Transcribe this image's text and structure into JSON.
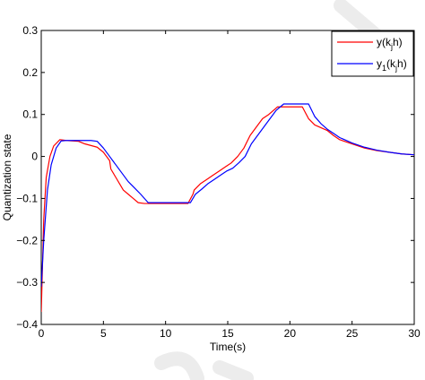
{
  "chart_data": {
    "type": "line",
    "xlabel": "Time(s)",
    "ylabel": "Quantization state",
    "xlim": [
      0,
      30
    ],
    "ylim": [
      -0.4,
      0.3
    ],
    "xticks": [
      0,
      5,
      10,
      15,
      20,
      25,
      30
    ],
    "xtick_labels": [
      "0",
      "5",
      "10",
      "15",
      "20",
      "25",
      "30"
    ],
    "yticks": [
      -0.4,
      -0.3,
      -0.2,
      -0.1,
      0,
      0.1,
      0.2,
      0.3
    ],
    "ytick_labels": [
      "−0.4",
      "−0.3",
      "−0.2",
      "−0.1",
      "0",
      "0.1",
      "0.2",
      "0.3"
    ],
    "grid": false,
    "legend_position": "top-right",
    "series": [
      {
        "name": "y(k_j h)",
        "color": "#ff0000",
        "x": [
          0,
          0.2,
          0.4,
          0.7,
          1.0,
          1.5,
          2.0,
          3.0,
          3.5,
          4.5,
          5.0,
          5.5,
          5.6,
          6.0,
          6.3,
          6.6,
          7.0,
          7.4,
          7.8,
          8.3,
          9.0,
          10.0,
          11.0,
          11.8,
          12.2,
          12.3,
          12.8,
          13.3,
          13.8,
          14.3,
          14.8,
          15.3,
          15.8,
          16.3,
          16.8,
          17.3,
          17.8,
          18.3,
          19.0,
          20.0,
          21.0,
          21.5,
          22.0,
          23.0,
          23.5,
          24.0,
          25.0,
          26.0,
          27.0,
          28.0,
          29.0,
          30.0
        ],
        "y": [
          -0.37,
          -0.15,
          -0.05,
          0.0,
          0.025,
          0.04,
          0.038,
          0.036,
          0.03,
          0.022,
          0.01,
          -0.01,
          -0.03,
          -0.05,
          -0.065,
          -0.08,
          -0.09,
          -0.1,
          -0.11,
          -0.112,
          -0.112,
          -0.112,
          -0.112,
          -0.112,
          -0.09,
          -0.08,
          -0.065,
          -0.055,
          -0.045,
          -0.035,
          -0.025,
          -0.015,
          0.0,
          0.02,
          0.05,
          0.07,
          0.09,
          0.1,
          0.118,
          0.118,
          0.118,
          0.09,
          0.075,
          0.062,
          0.05,
          0.04,
          0.03,
          0.02,
          0.014,
          0.01,
          0.006,
          0.004
        ]
      },
      {
        "name": "y_1(k_j h)",
        "color": "#0000ff",
        "x": [
          0,
          0.2,
          0.5,
          0.8,
          1.2,
          1.6,
          2.0,
          3.0,
          4.0,
          4.5,
          5.0,
          5.5,
          6.0,
          6.5,
          7.0,
          7.5,
          8.0,
          8.6,
          9.5,
          10.5,
          11.5,
          12.0,
          12.4,
          12.9,
          13.4,
          13.9,
          14.4,
          14.9,
          15.4,
          15.9,
          16.4,
          16.9,
          17.4,
          17.9,
          18.4,
          18.9,
          19.5,
          20.5,
          21.5,
          22.0,
          22.5,
          23.0,
          23.5,
          24.0,
          25.0,
          26.0,
          27.0,
          28.0,
          29.0,
          30.0
        ],
        "y": [
          -0.31,
          -0.2,
          -0.08,
          -0.02,
          0.02,
          0.037,
          0.038,
          0.038,
          0.038,
          0.036,
          0.02,
          0.0,
          -0.02,
          -0.04,
          -0.06,
          -0.075,
          -0.09,
          -0.11,
          -0.11,
          -0.11,
          -0.11,
          -0.11,
          -0.09,
          -0.078,
          -0.065,
          -0.055,
          -0.045,
          -0.035,
          -0.028,
          -0.015,
          0.0,
          0.03,
          0.05,
          0.07,
          0.09,
          0.11,
          0.125,
          0.125,
          0.125,
          0.095,
          0.078,
          0.065,
          0.055,
          0.045,
          0.032,
          0.022,
          0.015,
          0.01,
          0.006,
          0.004
        ]
      }
    ]
  },
  "legend": {
    "entries": [
      {
        "base": "y(k",
        "sub": "j",
        "tail": "h)"
      },
      {
        "base": "y",
        "sub": "1",
        "mid": "(k",
        "sub2": "j",
        "tail": "h)"
      }
    ]
  }
}
